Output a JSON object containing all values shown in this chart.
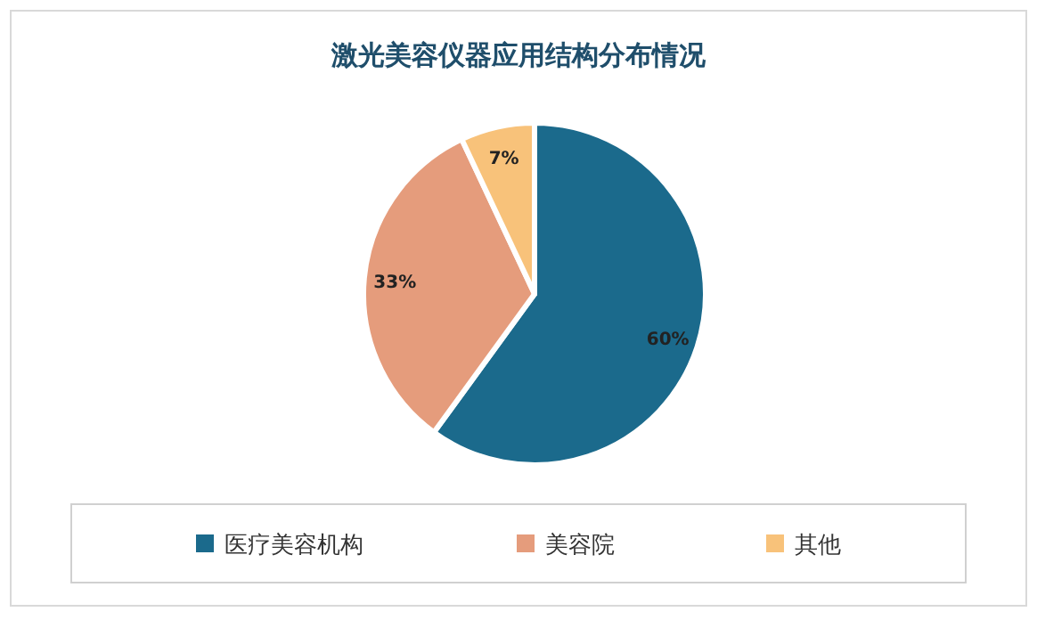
{
  "chart_data": {
    "type": "pie",
    "title": "激光美容仪器应用结构分布情况",
    "categories": [
      "医疗美容机构",
      "美容院",
      "其他"
    ],
    "values": [
      60,
      33,
      7
    ],
    "colors": [
      "#1b6a8c",
      "#e59c7c",
      "#f8c27a"
    ],
    "value_labels": [
      "60%",
      "33%",
      "7%"
    ],
    "legend": "bottom"
  }
}
